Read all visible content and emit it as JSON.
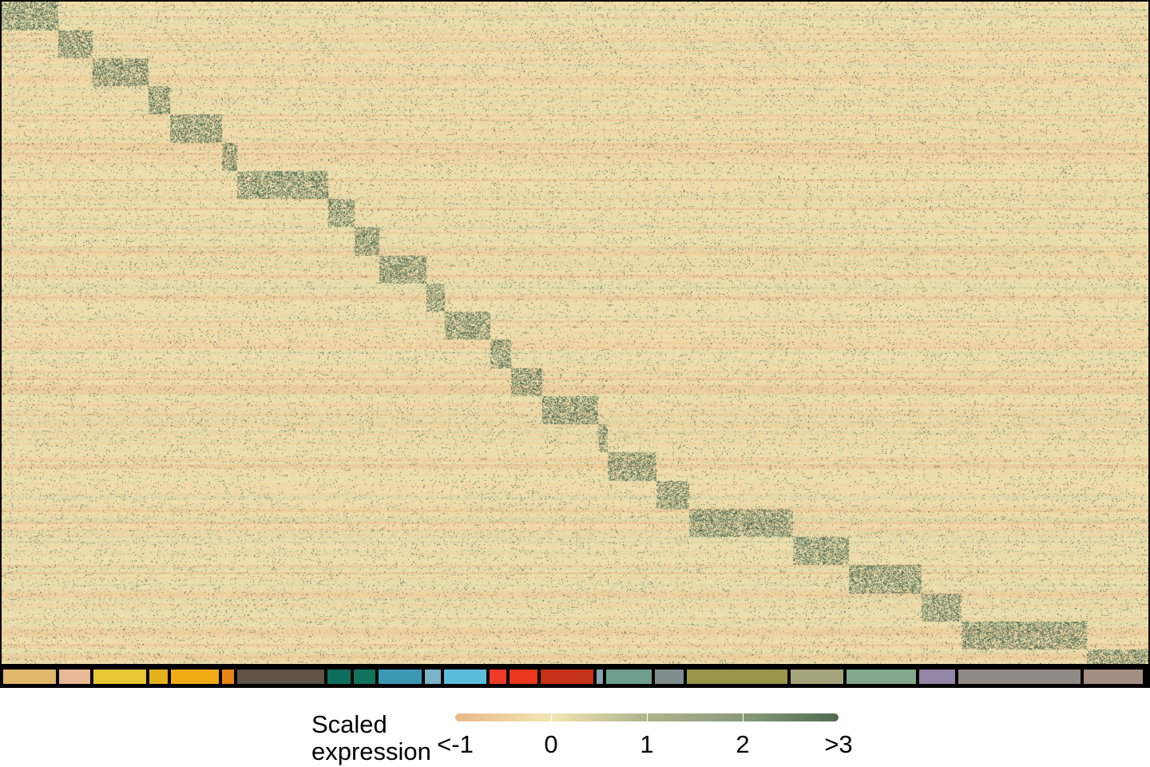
{
  "chart_data": {
    "type": "heatmap",
    "title": "",
    "xlabel": "",
    "ylabel": "",
    "grid": false,
    "legend": {
      "title": "Scaled\nexpression",
      "placement": "bottom",
      "range": [
        -1,
        3
      ],
      "ticks": [
        {
          "value": -1,
          "label": "<-1"
        },
        {
          "value": 0,
          "label": "0"
        },
        {
          "value": 1,
          "label": "1"
        },
        {
          "value": 2,
          "label": "2"
        },
        {
          "value": 3,
          "label": ">3"
        }
      ],
      "colors": [
        "#E8B88A",
        "#F3E6B3",
        "#ADB48C",
        "#8A9A7A",
        "#4F6B51"
      ]
    },
    "column_groups": [
      {
        "color": "#E0B76A",
        "share": 0.047
      },
      {
        "color": "#E8B997",
        "share": 0.029
      },
      {
        "color": "#E7C834",
        "share": 0.047
      },
      {
        "color": "#E2B11D",
        "share": 0.018
      },
      {
        "color": "#EFAA14",
        "share": 0.043
      },
      {
        "color": "#E88415",
        "share": 0.013
      },
      {
        "color": "#5F5446",
        "share": 0.076
      },
      {
        "color": "#0F6E5D",
        "share": 0.022
      },
      {
        "color": "#11735C",
        "share": 0.021
      },
      {
        "color": "#3B98B5",
        "share": 0.039
      },
      {
        "color": "#79B4C8",
        "share": 0.016
      },
      {
        "color": "#5BBDDA",
        "share": 0.038
      },
      {
        "color": "#EE3A26",
        "share": 0.017
      },
      {
        "color": "#EA361A",
        "share": 0.026
      },
      {
        "color": "#C53116",
        "share": 0.047
      },
      {
        "color": "#86A3AE",
        "share": 0.008
      },
      {
        "color": "#6FA08B",
        "share": 0.041
      },
      {
        "color": "#7E8E8C",
        "share": 0.027
      },
      {
        "color": "#9A9548",
        "share": 0.087
      },
      {
        "color": "#A4A47A",
        "share": 0.047
      },
      {
        "color": "#81A88A",
        "share": 0.061
      },
      {
        "color": "#9386A6",
        "share": 0.033
      },
      {
        "color": "#8F8A86",
        "share": 0.105
      },
      {
        "color": "#A48F80",
        "share": 0.052
      }
    ],
    "diagonal_blocks_note_free": true
  }
}
